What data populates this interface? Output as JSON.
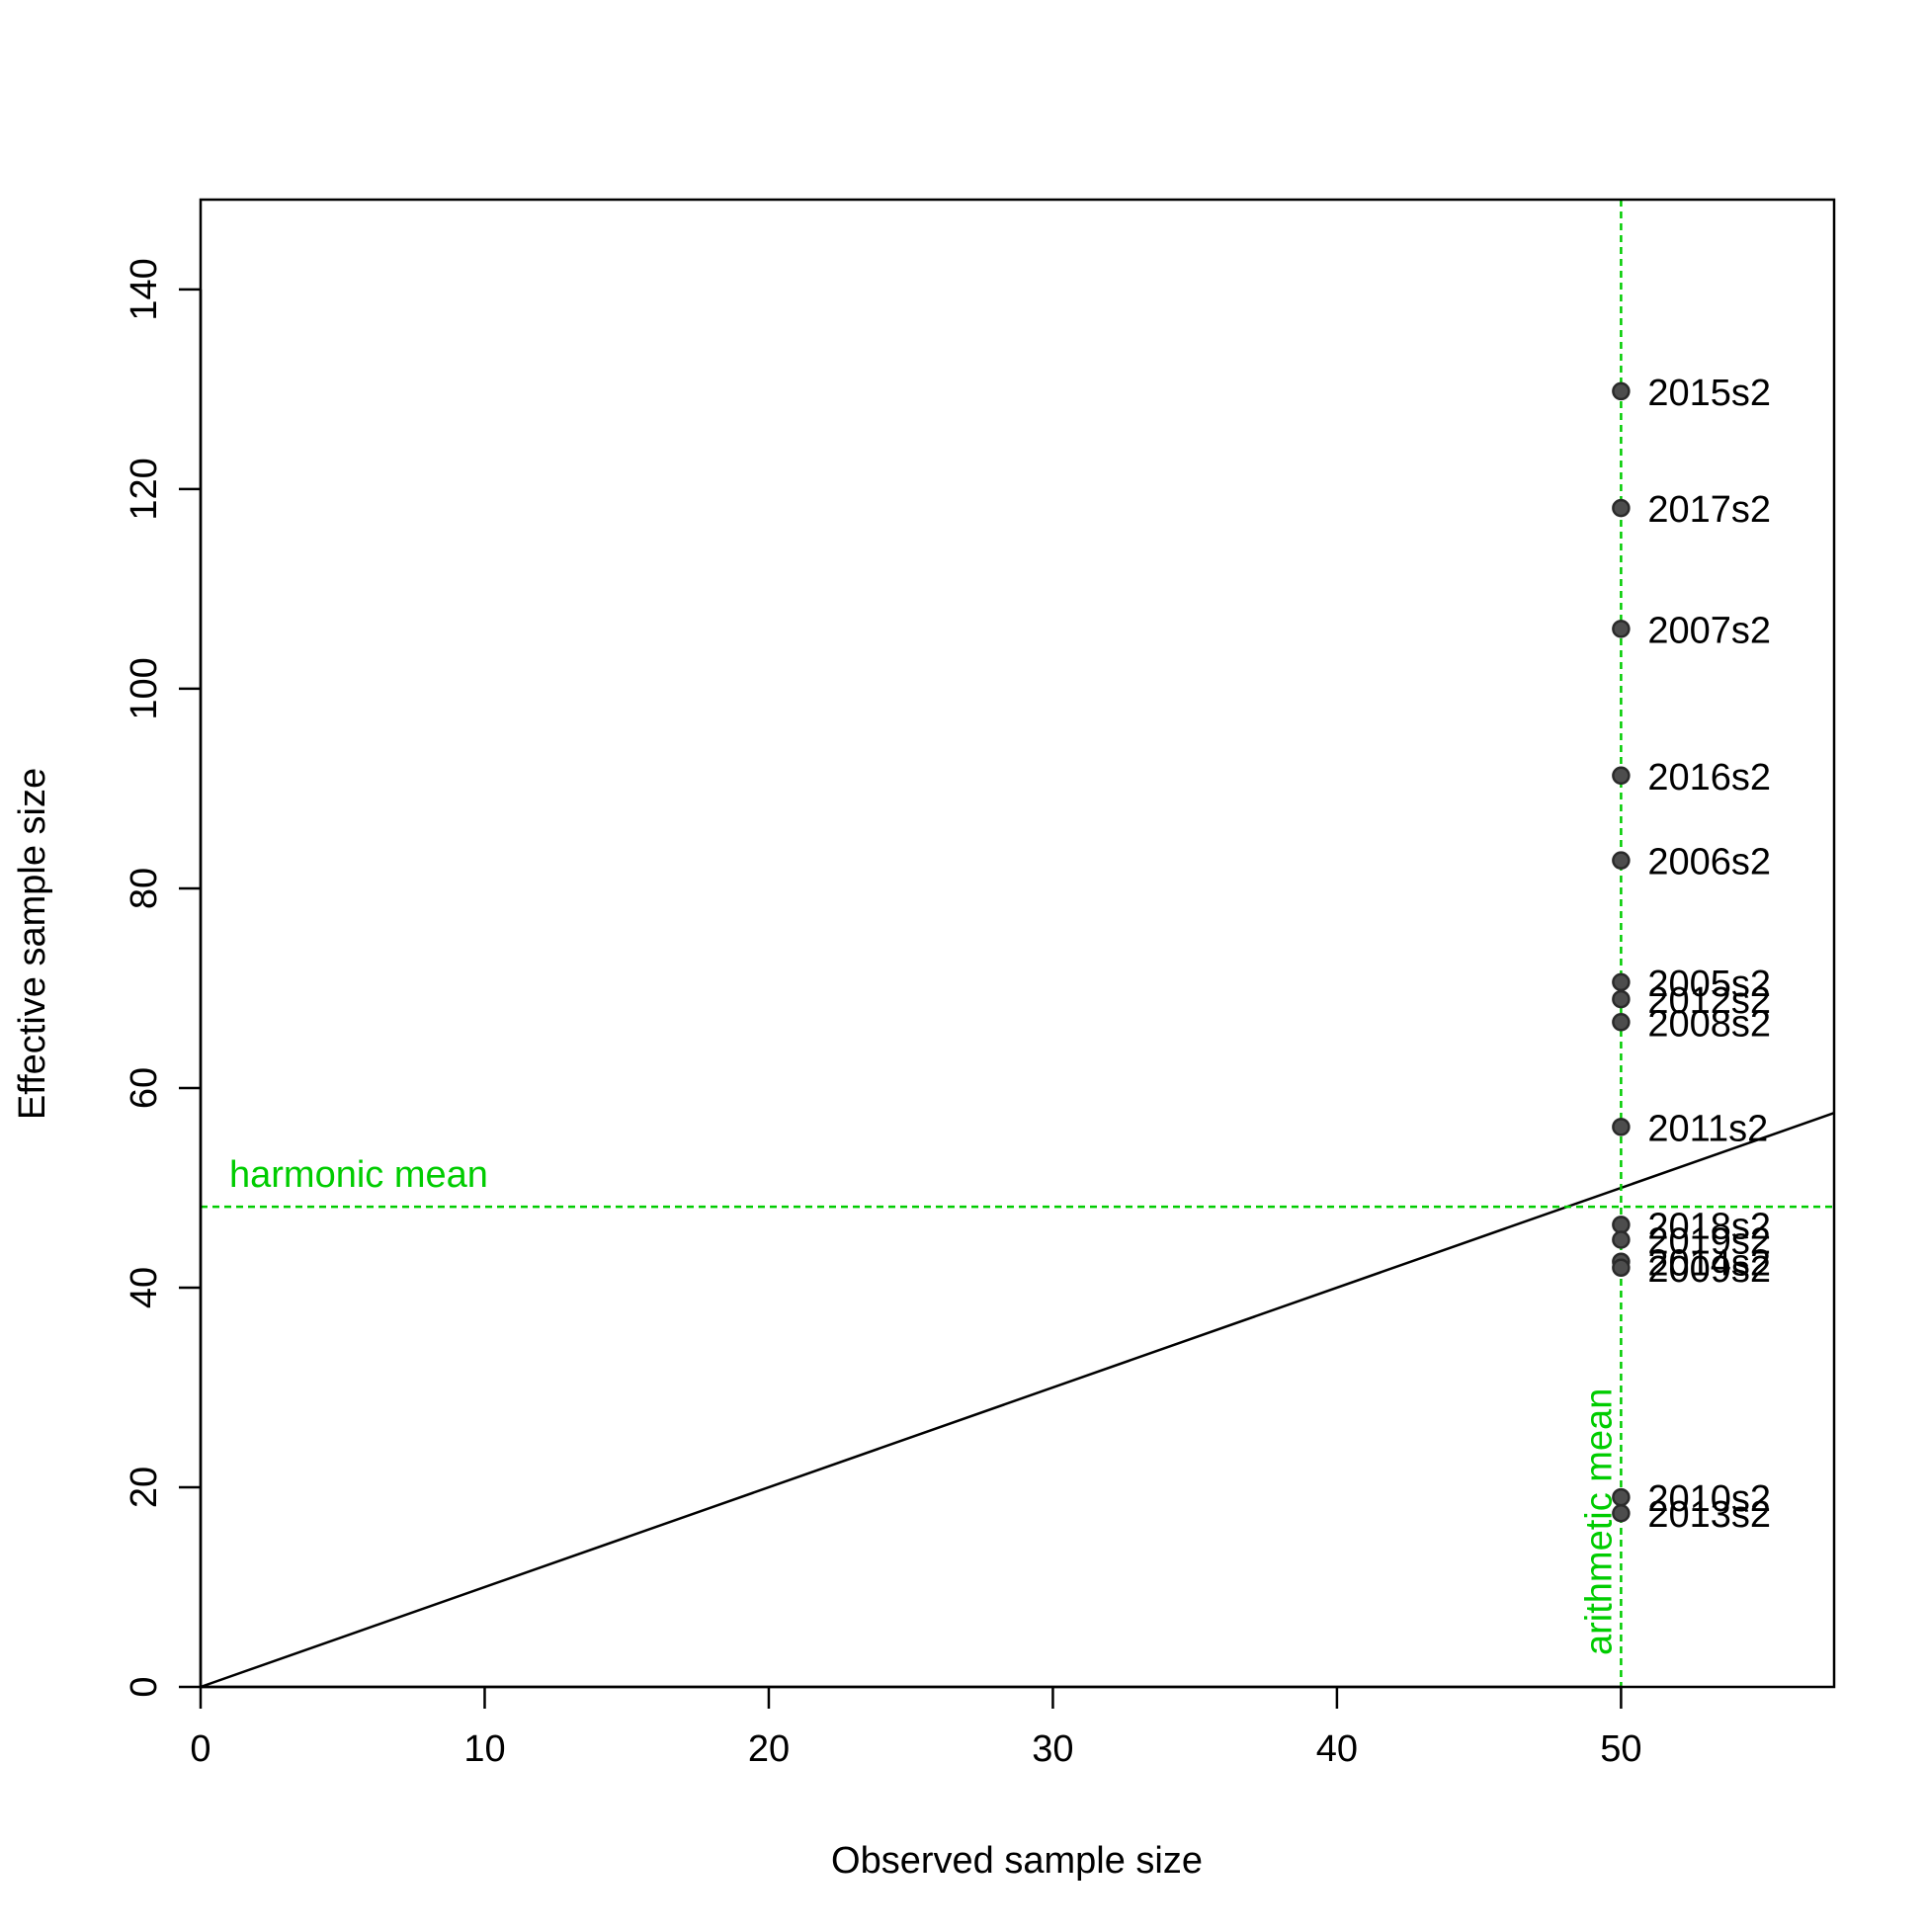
{
  "chart_data": {
    "type": "scatter",
    "title": "",
    "xlabel": "Observed sample size",
    "ylabel": "Effective sample size",
    "xlim": [
      0,
      57.5
    ],
    "ylim": [
      0,
      149
    ],
    "x_ticks": [
      "0",
      "10",
      "20",
      "30",
      "40",
      "50"
    ],
    "y_ticks": [
      "0",
      "20",
      "40",
      "60",
      "80",
      "100",
      "120",
      "140"
    ],
    "grid": false,
    "legend": "none",
    "colors": {
      "points": "#4d4d4d",
      "reference_lines": "#00cc00",
      "identity_line": "#000000",
      "text": "#000000"
    },
    "points": [
      {
        "x": 50,
        "y": 129.8,
        "label": "2015s2"
      },
      {
        "x": 50,
        "y": 118.1,
        "label": "2017s2"
      },
      {
        "x": 50,
        "y": 106.0,
        "label": "2007s2"
      },
      {
        "x": 50,
        "y": 91.3,
        "label": "2016s2"
      },
      {
        "x": 50,
        "y": 82.8,
        "label": "2006s2"
      },
      {
        "x": 50,
        "y": 70.6,
        "label": "2005s2"
      },
      {
        "x": 50,
        "y": 68.9,
        "label": "2012s2"
      },
      {
        "x": 50,
        "y": 66.6,
        "label": "2008s2"
      },
      {
        "x": 50,
        "y": 56.1,
        "label": "2011s2"
      },
      {
        "x": 50,
        "y": 46.3,
        "label": "2018s2"
      },
      {
        "x": 50,
        "y": 44.8,
        "label": "2019s2"
      },
      {
        "x": 50,
        "y": 42.6,
        "label": "2014s2"
      },
      {
        "x": 50,
        "y": 42.0,
        "label": "2009s2"
      },
      {
        "x": 50,
        "y": 19.0,
        "label": "2010s2"
      },
      {
        "x": 50,
        "y": 17.4,
        "label": "2013s2"
      }
    ],
    "identity_line": {
      "slope": 1,
      "intercept": 0
    },
    "harmonic_mean": {
      "value": 48.1,
      "label": "harmonic mean"
    },
    "arithmetic_mean": {
      "value": 50,
      "label": "arithmetic mean"
    }
  }
}
